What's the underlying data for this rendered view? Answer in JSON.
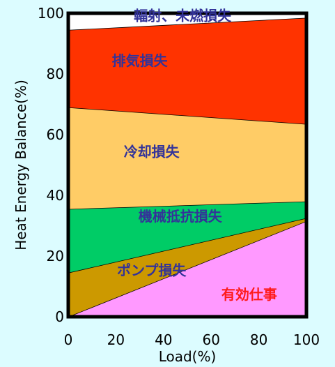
{
  "chart_data": {
    "type": "area",
    "xlabel": "Load(%)",
    "ylabel": "Heat Energy Balance(%)",
    "xlim": [
      0,
      100
    ],
    "ylim": [
      0,
      100
    ],
    "x_ticks": [
      "0",
      "20",
      "40",
      "60",
      "80",
      "100"
    ],
    "y_ticks": [
      "0",
      "20",
      "40",
      "60",
      "80",
      "100"
    ],
    "x": [
      0,
      100
    ],
    "bands": [
      {
        "name": "有効仕事",
        "lower": [
          0,
          0
        ],
        "upper": [
          0,
          31.5
        ],
        "color": "#ff99ff",
        "label_color": "#ff1a1a",
        "label_at": [
          76,
          7
        ]
      },
      {
        "name": "ポンプ損失",
        "lower": [
          0,
          31.5
        ],
        "upper": [
          14.5,
          32.5
        ],
        "color": "#cc9900",
        "label_color": "#333399",
        "label_at": [
          35,
          15
        ]
      },
      {
        "name": "機械抵抗損失",
        "lower": [
          14.5,
          32.5
        ],
        "upper": [
          35.5,
          38
        ],
        "color": "#00cc66",
        "label_color": "#333399",
        "label_at": [
          47,
          32.8
        ]
      },
      {
        "name": "冷却損失",
        "lower": [
          35.5,
          38
        ],
        "upper": [
          69,
          63.5
        ],
        "color": "#ffcc66",
        "label_color": "#333399",
        "label_at": [
          35,
          54
        ]
      },
      {
        "name": "排気損失",
        "lower": [
          69,
          63.5
        ],
        "upper": [
          94.5,
          98.5
        ],
        "color": "#ff3300",
        "label_color": "#333399",
        "label_at": [
          30,
          84
        ]
      },
      {
        "name": "輻射、未燃損失",
        "lower": [
          94.5,
          98.5
        ],
        "upper": [
          100,
          100
        ],
        "color": "#ffffff",
        "label_color": "#333399",
        "label_at": [
          48,
          98.8
        ]
      }
    ]
  }
}
